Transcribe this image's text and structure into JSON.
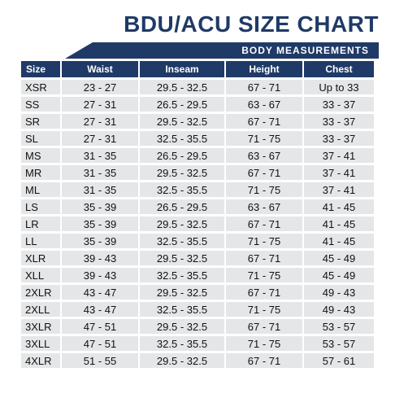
{
  "title": "BDU/ACU SIZE CHART",
  "banner": "BODY MEASUREMENTS",
  "headers": [
    "Size",
    "Waist",
    "Inseam",
    "Height",
    "Chest"
  ],
  "colors": {
    "navy": "#1f3a66",
    "row": "#e5e6e8"
  },
  "rows": [
    [
      "XSR",
      "23 - 27",
      "29.5 - 32.5",
      "67 - 71",
      "Up to 33"
    ],
    [
      "SS",
      "27 - 31",
      "26.5 - 29.5",
      "63 - 67",
      "33 - 37"
    ],
    [
      "SR",
      "27 - 31",
      "29.5 - 32.5",
      "67 - 71",
      "33 - 37"
    ],
    [
      "SL",
      "27 - 31",
      "32.5 - 35.5",
      "71 - 75",
      "33 - 37"
    ],
    [
      "MS",
      "31 - 35",
      "26.5 - 29.5",
      "63 - 67",
      "37 - 41"
    ],
    [
      "MR",
      "31 - 35",
      "29.5 - 32.5",
      "67 - 71",
      "37 - 41"
    ],
    [
      "ML",
      "31 - 35",
      "32.5 - 35.5",
      "71 - 75",
      "37 - 41"
    ],
    [
      "LS",
      "35 - 39",
      "26.5 - 29.5",
      "63 - 67",
      "41 - 45"
    ],
    [
      "LR",
      "35 - 39",
      "29.5 - 32.5",
      "67 - 71",
      "41 - 45"
    ],
    [
      "LL",
      "35 - 39",
      "32.5 - 35.5",
      "71 - 75",
      "41 - 45"
    ],
    [
      "XLR",
      "39 - 43",
      "29.5 - 32.5",
      "67 - 71",
      "45 - 49"
    ],
    [
      "XLL",
      "39 - 43",
      "32.5 - 35.5",
      "71 - 75",
      "45 - 49"
    ],
    [
      "2XLR",
      "43 - 47",
      "29.5 - 32.5",
      "67 - 71",
      "49 - 43"
    ],
    [
      "2XLL",
      "43 - 47",
      "32.5 - 35.5",
      "71 - 75",
      "49 - 43"
    ],
    [
      "3XLR",
      "47 - 51",
      "29.5 - 32.5",
      "67 - 71",
      "53 - 57"
    ],
    [
      "3XLL",
      "47 - 51",
      "32.5 - 35.5",
      "71 - 75",
      "53 - 57"
    ],
    [
      "4XLR",
      "51 - 55",
      "29.5 - 32.5",
      "67 - 71",
      "57 - 61"
    ]
  ]
}
